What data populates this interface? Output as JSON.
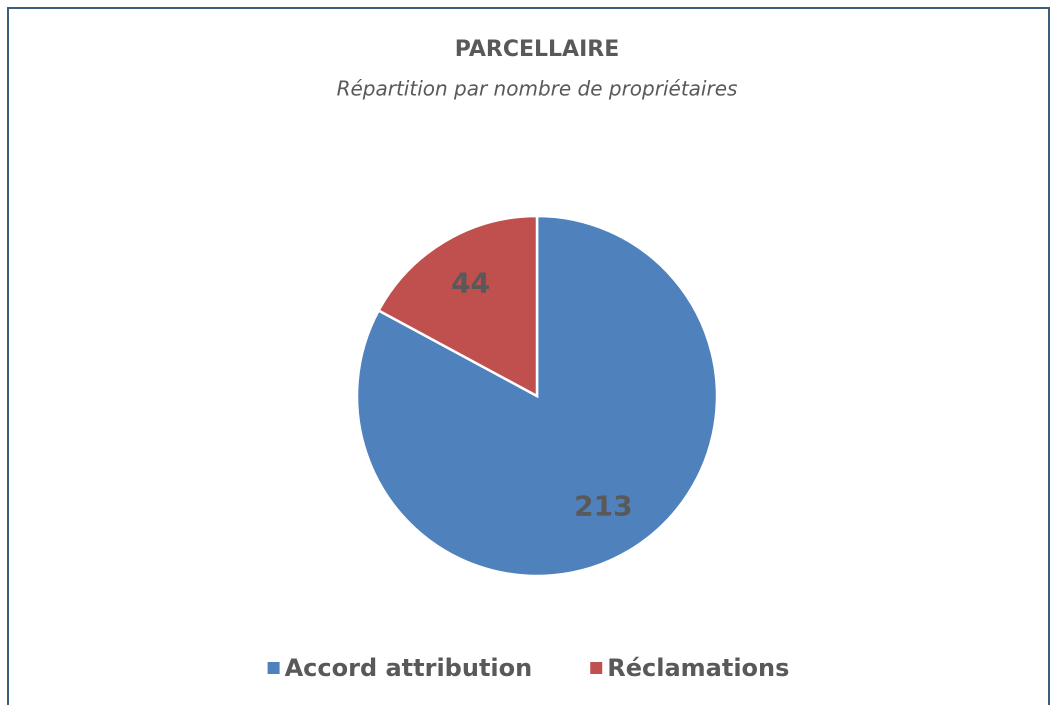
{
  "chart_data": {
    "type": "pie",
    "title": "PARCELLAIRE",
    "subtitle": "Répartition par nombre de propriétaires",
    "categories": [
      "Accord attribution",
      "Réclamations"
    ],
    "values": [
      213,
      44
    ],
    "colors": [
      "#4f81bd",
      "#c0504d"
    ],
    "legend": "bottom"
  }
}
